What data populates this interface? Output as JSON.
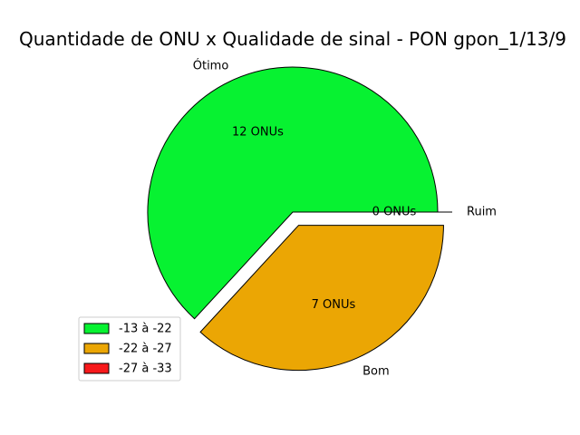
{
  "chart_data": {
    "type": "pie",
    "title": "Quantidade de ONU x Qualidade de sinal - PON gpon_1/13/9",
    "slices": [
      {
        "category": "Ótimo",
        "value": 12,
        "label": "12 ONUs",
        "legend": "-13 à -22",
        "color": "#07f231",
        "exploded": false
      },
      {
        "category": "Bom",
        "value": 7,
        "label": "7 ONUs",
        "legend": "-22 à -27",
        "color": "#eba604",
        "exploded": true
      },
      {
        "category": "Ruim",
        "value": 0,
        "label": "0 ONUs",
        "legend": "-27 à -33",
        "color": "#f7191b",
        "exploded": true
      }
    ],
    "legend_position": "lower-left",
    "start_angle_deg": 0,
    "direction": "counterclockwise"
  }
}
